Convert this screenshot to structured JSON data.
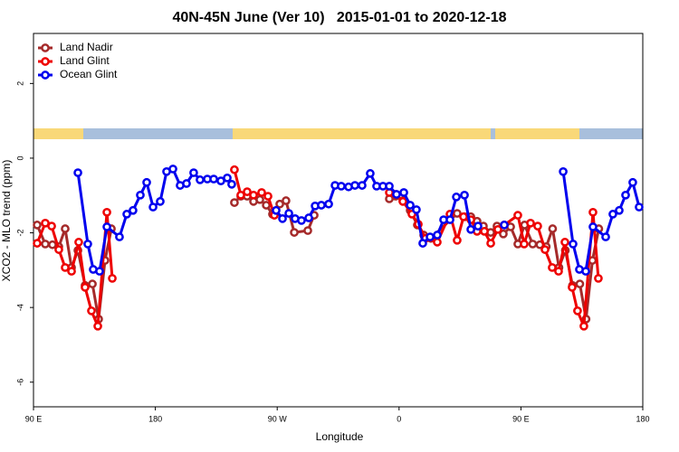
{
  "chart_data": {
    "type": "line",
    "title": "40N-45N June (Ver 10)   2015-01-01 to 2020-12-18",
    "x_label": "Longitude",
    "y_label": "XCO2 - MLO trend (ppm)",
    "xlim": [
      90,
      540
    ],
    "ylim": [
      -6.66,
      3.34
    ],
    "xticks": [
      {
        "value": 90,
        "label": "90 E"
      },
      180,
      {
        "value": 270,
        "label": "90 W"
      },
      {
        "value": 360,
        "label": "0"
      },
      {
        "value": 450,
        "label": "90 E"
      },
      {
        "value": 540,
        "label": "180"
      }
    ],
    "yticks": [
      -6,
      -4,
      -2,
      0,
      2
    ],
    "legend": "top-left",
    "series": [
      {
        "name": "Land Nadir",
        "color": "#a52a2a",
        "x": [
          92.7,
          98.7,
          104.0,
          108.7,
          113.4,
          118.1,
          122.8,
          128.1,
          133.5,
          138.1,
          142.8,
          147.5,
          null,
          238.4,
          243.1,
          247.8,
          252.5,
          257.2,
          261.9,
          266.5,
          271.9,
          276.5,
          282.6,
          292.6,
          297.3,
          null,
          352.8,
          357.5,
          362.8,
          368.2,
          373.5,
          378.2,
          383.5,
          402.9,
          408.3,
          413.0,
          417.6,
          422.3,
          427.7,
          432.3,
          437.0,
          442.4,
          447.7,
          452.7,
          458.7,
          464.0,
          468.7,
          473.4,
          478.1,
          482.8,
          488.1,
          493.5,
          498.1,
          502.8,
          507.5
        ],
        "values": [
          -1.79,
          -2.3,
          -2.32,
          -2.37,
          -1.89,
          -2.93,
          -2.47,
          -3.41,
          -3.37,
          -4.31,
          -2.74,
          -1.89,
          null,
          -1.19,
          -1.02,
          -1.02,
          -1.16,
          -1.11,
          -1.26,
          -1.5,
          -1.23,
          -1.14,
          -1.99,
          -1.94,
          -1.53,
          null,
          -1.09,
          -1.02,
          -1.14,
          -1.4,
          -1.79,
          -2.06,
          -2.15,
          -1.48,
          -1.57,
          -1.57,
          -1.69,
          -1.82,
          -1.99,
          -1.82,
          -2.03,
          -1.84,
          -2.3,
          -1.79,
          -2.3,
          -2.32,
          -2.37,
          -1.89,
          -2.93,
          -2.47,
          -3.41,
          -3.37,
          -4.31,
          -2.74,
          -1.89
        ]
      },
      {
        "name": "Land Glint",
        "color": "#ee0000",
        "x": [
          92.7,
          98.7,
          103.4,
          108.7,
          113.4,
          118.1,
          123.4,
          128.1,
          132.8,
          137.5,
          144.2,
          148.2,
          null,
          238.4,
          243.1,
          247.8,
          252.5,
          258.5,
          263.2,
          267.9,
          null,
          352.8,
          357.5,
          362.8,
          369.5,
          374.2,
          379.5,
          388.2,
          397.6,
          402.9,
          407.6,
          413.0,
          417.6,
          423.0,
          427.7,
          433.0,
          437.7,
          447.7,
          452.4,
          457.1,
          462.4,
          467.8,
          473.1,
          477.8,
          482.5,
          487.8,
          491.8,
          496.5,
          503.2,
          507.2
        ],
        "values": [
          -2.28,
          -1.74,
          -1.82,
          -2.45,
          -2.93,
          -3.03,
          -2.25,
          -3.46,
          -4.09,
          -4.5,
          -1.45,
          -3.22,
          null,
          -0.31,
          -0.99,
          -0.9,
          -0.99,
          -0.92,
          -1.02,
          -1.53,
          null,
          -0.92,
          -0.97,
          -1.16,
          -1.5,
          -1.77,
          -2.15,
          -2.25,
          -1.5,
          -2.2,
          -1.57,
          -1.65,
          -1.96,
          -1.96,
          -2.28,
          -1.91,
          -1.79,
          -1.53,
          -2.3,
          -1.74,
          -1.82,
          -2.45,
          -2.93,
          -3.03,
          -2.25,
          -3.46,
          -4.09,
          -4.5,
          -1.45,
          -3.22
        ]
      },
      {
        "name": "Ocean Glint",
        "color": "#0000ee",
        "x": [
          122.8,
          130.1,
          134.1,
          138.8,
          144.2,
          153.5,
          158.9,
          163.5,
          168.9,
          173.6,
          178.3,
          183.6,
          188.3,
          193.0,
          198.3,
          203.0,
          208.3,
          213.0,
          218.4,
          223.1,
          228.4,
          233.1,
          236.4,
          null,
          269.2,
          273.9,
          278.6,
          283.2,
          287.9,
          293.3,
          298.0,
          302.6,
          308.0,
          312.7,
          317.3,
          322.7,
          327.4,
          332.7,
          338.7,
          343.4,
          348.1,
          352.8,
          358.1,
          363.5,
          368.2,
          372.8,
          377.5,
          382.9,
          388.2,
          392.9,
          397.6,
          402.3,
          408.3,
          413.0,
          418.3,
          null,
          437.7,
          null,
          481.2,
          488.5,
          493.2,
          497.9,
          503.2,
          512.6,
          517.9,
          522.6,
          527.3,
          532.6,
          537.3
        ],
        "values": [
          -0.39,
          -2.3,
          -2.98,
          -3.03,
          -1.84,
          -2.11,
          -1.5,
          -1.4,
          -0.99,
          -0.65,
          -1.31,
          -1.16,
          -0.36,
          -0.29,
          -0.73,
          -0.68,
          -0.39,
          -0.58,
          -0.56,
          -0.56,
          -0.61,
          -0.53,
          -0.7,
          null,
          -1.4,
          -1.62,
          -1.48,
          -1.62,
          -1.67,
          -1.6,
          -1.28,
          -1.26,
          -1.23,
          -0.73,
          -0.75,
          -0.77,
          -0.73,
          -0.73,
          -0.41,
          -0.75,
          -0.75,
          -0.75,
          -0.97,
          -0.92,
          -1.26,
          -1.38,
          -2.28,
          -2.11,
          -2.06,
          -1.65,
          -1.65,
          -1.04,
          -0.99,
          -1.91,
          -1.82,
          null,
          -1.79,
          null,
          -0.36,
          -2.3,
          -2.98,
          -3.03,
          -1.84,
          -2.11,
          -1.5,
          -1.4,
          -0.99,
          -0.65,
          -1.31
        ]
      }
    ]
  }
}
